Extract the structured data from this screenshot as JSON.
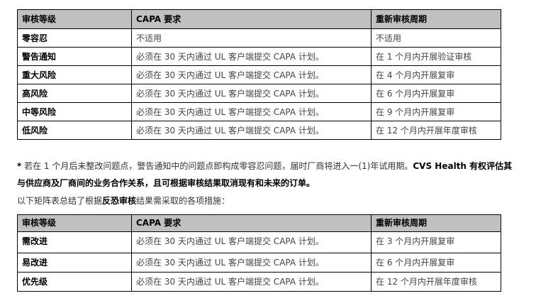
{
  "table1": {
    "headers": [
      "审核等级",
      "CAPA 要求",
      "重新审核周期"
    ],
    "rows": [
      {
        "level": "零容忍",
        "capa": "不适用",
        "period": "不适用"
      },
      {
        "level": "警告通知",
        "capa": "必须在 30 天内通过 UL 客户端提交 CAPA 计划。",
        "period": "在 1 个月内开展验证审核"
      },
      {
        "level": "重大风险",
        "capa": "必须在 30 天内通过 UL 客户端提交 CAPA 计划。",
        "period": "在 4 个月内开展复审"
      },
      {
        "level": "高风险",
        "capa": "必须在 30 天内通过 UL 客户端提交 CAPA 计划。",
        "period": "在 6 个月内开展复审"
      },
      {
        "level": "中等风险",
        "capa": "必须在 30 天内通过 UL 客户端提交 CAPA 计划。",
        "period": "在 9 个月内开展复审"
      },
      {
        "level": "低风险",
        "capa": "必须在 30 天内通过 UL 客户端提交 CAPA 计划。",
        "period": "在 12 个月内开展年度审核"
      }
    ]
  },
  "footnote": {
    "star": "*",
    "text": " 若在 1 个月后未整改问题点，警告通知中的问题点即构成零容忍问题，届时厂商将进入一(1)年试用期。",
    "bold": "CVS Health 有权评估其与供应商及厂商间的业务合作关系，且可根据审核结果取消现有和未来的订单。"
  },
  "intro": {
    "before": "以下矩阵表总结了根据",
    "bold": "反恐审核",
    "after": "结果需采取的各项措施："
  },
  "table2": {
    "headers": [
      "审核等级",
      "CAPA 要求",
      "重新审核周期"
    ],
    "rows": [
      {
        "level": "需改进",
        "capa": "必须在 30 天内通过 UL 客户端提交 CAPA 计划。",
        "period": "在 3 个月内开展复审"
      },
      {
        "level": "易改进",
        "capa": "必须在 30 天内通过 UL 客户端提交 CAPA 计划。",
        "period": "在 6 个月内开展复审"
      },
      {
        "level": "优先级",
        "capa": "必须在 30 天内通过 UL 客户端提交 CAPA 计划。",
        "period": "在 12 个月内开展年度审核"
      }
    ]
  }
}
